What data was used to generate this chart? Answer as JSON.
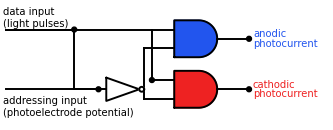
{
  "bg_color": "#ffffff",
  "line_color": "#000000",
  "and_gate_blue": "#2255ee",
  "and_gate_red": "#ee2222",
  "text_color_black": "#000000",
  "text_color_blue": "#2255ee",
  "text_color_red": "#ee2222",
  "label_data_input": "data input\n(light pulses)",
  "label_addressing": "addressing input\n(photoelectrode potential)",
  "label_anodic1": "anodic",
  "label_anodic2": "photocurrent",
  "label_cathodic1": "cathodic",
  "label_cathodic2": "photocurrent",
  "lw": 1.4,
  "dot_r": 2.5
}
